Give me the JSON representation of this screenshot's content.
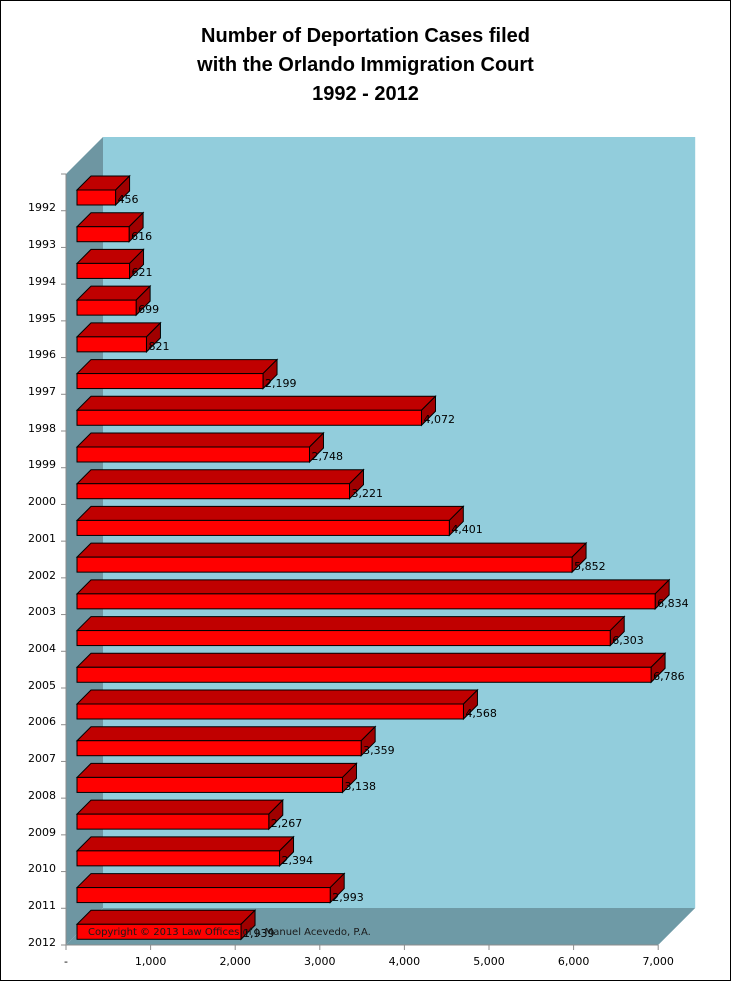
{
  "chart_data": {
    "type": "bar",
    "orientation": "horizontal",
    "style": "3d",
    "title": "Number of Deportation Cases filed with the Orlando Immigration Court 1992 - 2012",
    "title_lines": [
      "Number of Deportation Cases filed",
      "with the Orlando Immigration Court",
      "1992 - 2012"
    ],
    "categories": [
      "1992",
      "1993",
      "1994",
      "1995",
      "1996",
      "1997",
      "1998",
      "1999",
      "2000",
      "2001",
      "2002",
      "2003",
      "2004",
      "2005",
      "2006",
      "2007",
      "2008",
      "2009",
      "2010",
      "2011",
      "2012"
    ],
    "values": [
      456,
      616,
      621,
      699,
      821,
      2199,
      4072,
      2748,
      3221,
      4401,
      5852,
      6834,
      6303,
      6786,
      4568,
      3359,
      3138,
      2267,
      2394,
      2993,
      1939
    ],
    "value_labels": [
      "456",
      "616",
      "621",
      "699",
      "821",
      "2,199",
      "4,072",
      "2,748",
      "3,221",
      "4,401",
      "5,852",
      "6,834",
      "6,303",
      "6,786",
      "4,568",
      "3,359",
      "3,138",
      "2,267",
      "2,394",
      "2,993",
      "1,939"
    ],
    "xlabel": "",
    "ylabel": "",
    "xlim": [
      0,
      7000
    ],
    "x_ticks": [
      "-",
      "1,000",
      "2,000",
      "3,000",
      "4,000",
      "5,000",
      "6,000",
      "7,000"
    ],
    "grid": false,
    "legend": null,
    "annotation": "Copyright © 2013 Law Offices of J. Manuel Acevedo, P.A.",
    "colors": {
      "bar_front": "#FF0000",
      "bar_top": "#C00000",
      "bar_side": "#A00000",
      "back_wall": "#92CDDC",
      "side_wall": "#6E96A2",
      "floor": "#6E9AA6"
    }
  }
}
